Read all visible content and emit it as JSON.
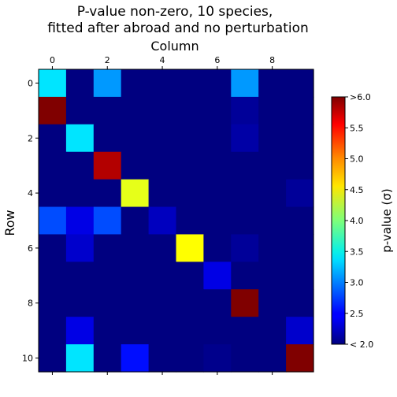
{
  "chart_data": {
    "type": "heatmap",
    "title_lines": [
      "P-value non-zero, 10 species,",
      "fitted after abroad and no perturbation"
    ],
    "xlabel": "Column",
    "ylabel": "Row",
    "x_ticks": [
      0,
      2,
      4,
      6,
      8
    ],
    "y_ticks": [
      0,
      2,
      4,
      6,
      8,
      10
    ],
    "colorbar": {
      "label": "p-value (σ)",
      "min": 2.0,
      "max": 6.0,
      "ticks": [
        {
          "value": 2.0,
          "label": "< 2.0"
        },
        {
          "value": 2.5,
          "label": "2.5"
        },
        {
          "value": 3.0,
          "label": "3.0"
        },
        {
          "value": 3.5,
          "label": "3.5"
        },
        {
          "value": 4.0,
          "label": "4.0"
        },
        {
          "value": 4.5,
          "label": "4.5"
        },
        {
          "value": 5.0,
          "label": "5.0"
        },
        {
          "value": 5.5,
          "label": "5.5"
        },
        {
          "value": 6.0,
          "label": ">6.0"
        }
      ]
    },
    "colormap": "jet",
    "rows": 11,
    "cols": 10,
    "values": [
      [
        3.4,
        2.0,
        3.1,
        2.0,
        2.0,
        2.0,
        2.0,
        3.1,
        2.0,
        2.0
      ],
      [
        6.0,
        2.0,
        2.0,
        2.0,
        2.0,
        2.0,
        2.0,
        2.1,
        2.0,
        2.0
      ],
      [
        2.0,
        3.4,
        2.0,
        2.0,
        2.0,
        2.0,
        2.0,
        2.15,
        2.0,
        2.0
      ],
      [
        2.0,
        2.0,
        5.8,
        2.0,
        2.0,
        2.0,
        2.0,
        2.0,
        2.0,
        2.0
      ],
      [
        2.0,
        2.0,
        2.0,
        4.4,
        2.0,
        2.0,
        2.0,
        2.0,
        2.0,
        2.1
      ],
      [
        2.8,
        2.4,
        2.8,
        2.0,
        2.25,
        2.0,
        2.0,
        2.0,
        2.0,
        2.0
      ],
      [
        2.0,
        2.3,
        2.0,
        2.0,
        2.0,
        4.5,
        2.0,
        2.1,
        2.0,
        2.0
      ],
      [
        2.0,
        2.0,
        2.0,
        2.0,
        2.0,
        2.0,
        2.4,
        2.0,
        2.0,
        2.0
      ],
      [
        2.0,
        2.0,
        2.0,
        2.0,
        2.0,
        2.0,
        2.0,
        6.0,
        2.0,
        2.0
      ],
      [
        2.0,
        2.4,
        2.0,
        2.0,
        2.0,
        2.0,
        2.0,
        2.0,
        2.0,
        2.3
      ],
      [
        2.0,
        3.4,
        2.0,
        2.55,
        2.0,
        2.0,
        2.05,
        2.0,
        2.0,
        6.0
      ]
    ]
  }
}
